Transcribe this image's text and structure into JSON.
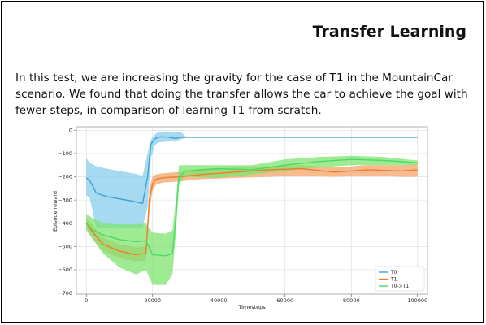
{
  "slide": {
    "title": "Transfer Learning",
    "body": "In this test, we are increasing the gravity for the case of T1 in the MountainCar scenario. We found that doing the transfer allows the car to achieve the goal with fewer steps, in comparison of learning T1 from scratch."
  },
  "chart_data": {
    "type": "line",
    "title": "",
    "xlabel": "Timesteps",
    "ylabel": "Episode reward",
    "xlim": [
      -3000,
      103000
    ],
    "ylim": [
      -705,
      15
    ],
    "xticks": [
      0,
      20000,
      40000,
      60000,
      80000,
      100000
    ],
    "yticks": [
      0,
      -100,
      -200,
      -300,
      -400,
      -500,
      -600,
      -700
    ],
    "grid": true,
    "legend_position": "bottom-right",
    "series": [
      {
        "name": "T0",
        "color": "#3ca2d8",
        "band_color": "#87ceeb",
        "x": [
          0,
          1000,
          3000,
          6000,
          10000,
          14000,
          17000,
          18500,
          19500,
          20500,
          21500,
          23000,
          25000,
          27000,
          28500,
          30000,
          40000,
          60000,
          80000,
          100000
        ],
        "y": [
          -205,
          -215,
          -270,
          -285,
          -295,
          -305,
          -315,
          -200,
          -60,
          -40,
          -30,
          -28,
          -30,
          -35,
          -30,
          -30,
          -30,
          -30,
          -30,
          -30
        ],
        "lower": [
          -280,
          -290,
          -420,
          -420,
          -420,
          -420,
          -420,
          -330,
          -120,
          -70,
          -55,
          -50,
          -48,
          -45,
          -40,
          -32,
          -31,
          -31,
          -31,
          -31
        ],
        "upper": [
          -120,
          -140,
          -155,
          -165,
          -175,
          -185,
          -195,
          -100,
          -40,
          -20,
          -10,
          -5,
          -5,
          -10,
          -5,
          -28,
          -29,
          -29,
          -29,
          -29
        ]
      },
      {
        "name": "T1",
        "color": "#ee7d2d",
        "band_color": "#f4a46a",
        "x": [
          0,
          2000,
          5000,
          10000,
          15000,
          18000,
          19000,
          20000,
          21000,
          23000,
          28000,
          35000,
          45000,
          55000,
          65000,
          75000,
          85000,
          95000,
          100000
        ],
        "y": [
          -400,
          -440,
          -490,
          -520,
          -535,
          -530,
          -300,
          -230,
          -210,
          -205,
          -200,
          -190,
          -180,
          -170,
          -165,
          -180,
          -170,
          -175,
          -170
        ],
        "lower": [
          -420,
          -470,
          -520,
          -550,
          -565,
          -560,
          -350,
          -260,
          -235,
          -225,
          -220,
          -210,
          -205,
          -200,
          -195,
          -200,
          -195,
          -200,
          -200
        ],
        "upper": [
          -380,
          -410,
          -460,
          -490,
          -505,
          -500,
          -250,
          -200,
          -190,
          -185,
          -180,
          -165,
          -160,
          -155,
          -150,
          -160,
          -150,
          -150,
          -145
        ]
      },
      {
        "name": "T0->T1",
        "color": "#4cd964",
        "band_color": "#7ee46f",
        "x": [
          0,
          2000,
          5000,
          10000,
          15000,
          18000,
          20000,
          24000,
          26000,
          27000,
          28000,
          30000,
          40000,
          50000,
          60000,
          70000,
          80000,
          90000,
          100000
        ],
        "y": [
          -400,
          -430,
          -450,
          -470,
          -480,
          -475,
          -535,
          -540,
          -530,
          -380,
          -200,
          -175,
          -165,
          -170,
          -150,
          -135,
          -125,
          -130,
          -140
        ],
        "lower": [
          -430,
          -470,
          -530,
          -590,
          -620,
          -600,
          -665,
          -665,
          -620,
          -450,
          -230,
          -200,
          -205,
          -190,
          -175,
          -160,
          -150,
          -150,
          -150
        ],
        "upper": [
          -360,
          -380,
          -400,
          -405,
          -405,
          -400,
          -440,
          -445,
          -430,
          -300,
          -150,
          -150,
          -150,
          -150,
          -125,
          -115,
          -110,
          -115,
          -130
        ]
      }
    ]
  }
}
